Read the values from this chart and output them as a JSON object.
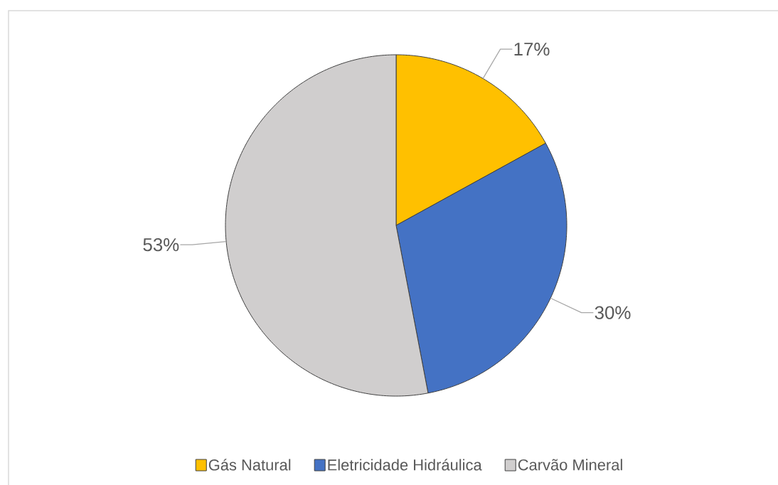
{
  "chart_data": {
    "type": "pie",
    "categories": [
      "Gás Natural",
      "Eletricidade Hidráulica",
      "Carvão Mineral"
    ],
    "values": [
      17,
      30,
      53
    ],
    "colors": [
      "#ffc000",
      "#4472c4",
      "#d0cece"
    ],
    "value_labels": [
      "17%",
      "30%",
      "53%"
    ],
    "legend": "bottom"
  }
}
